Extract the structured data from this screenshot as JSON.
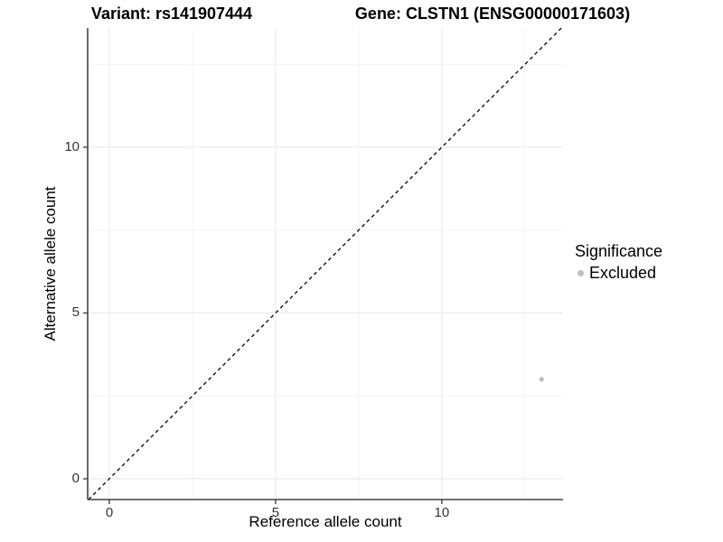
{
  "titles": {
    "variant": "Variant: rs141907444",
    "gene": "Gene: CLSTN1 (ENSG00000171603)"
  },
  "chart_data": {
    "type": "scatter",
    "title_left": "Variant: rs141907444",
    "title_right": "Gene: CLSTN1 (ENSG00000171603)",
    "xlabel": "Reference allele count",
    "ylabel": "Alternative allele count",
    "xlim": [
      -0.652,
      13.645
    ],
    "ylim": [
      -0.627,
      13.595
    ],
    "x_ticks": [
      0,
      5,
      10
    ],
    "y_ticks": [
      0,
      5,
      10
    ],
    "x_minor_ticks": [
      2.5,
      7.5,
      12.5
    ],
    "y_minor_ticks": [
      2.5,
      7.5,
      12.5
    ],
    "grid": true,
    "series": [
      {
        "name": "Excluded",
        "color": "#bfbfbf",
        "points": [
          {
            "x": 13,
            "y": 3
          }
        ]
      }
    ],
    "reference_line": {
      "type": "identity",
      "style": "dashed",
      "color": "#111111"
    },
    "legend": {
      "title": "Significance",
      "position": "right",
      "items": [
        {
          "label": "Excluded",
          "color": "#bfbfbf"
        }
      ]
    },
    "style": {
      "background": "#ffffff",
      "axis_line_color": "#444444",
      "tick_mark_color": "#444444",
      "tick_label_color": "#333333",
      "grid_major_color": "#ebebeb",
      "grid_minor_color": "#f4f4f4",
      "point_radius": 2.6,
      "legend_dot_radius": 3.5
    }
  }
}
